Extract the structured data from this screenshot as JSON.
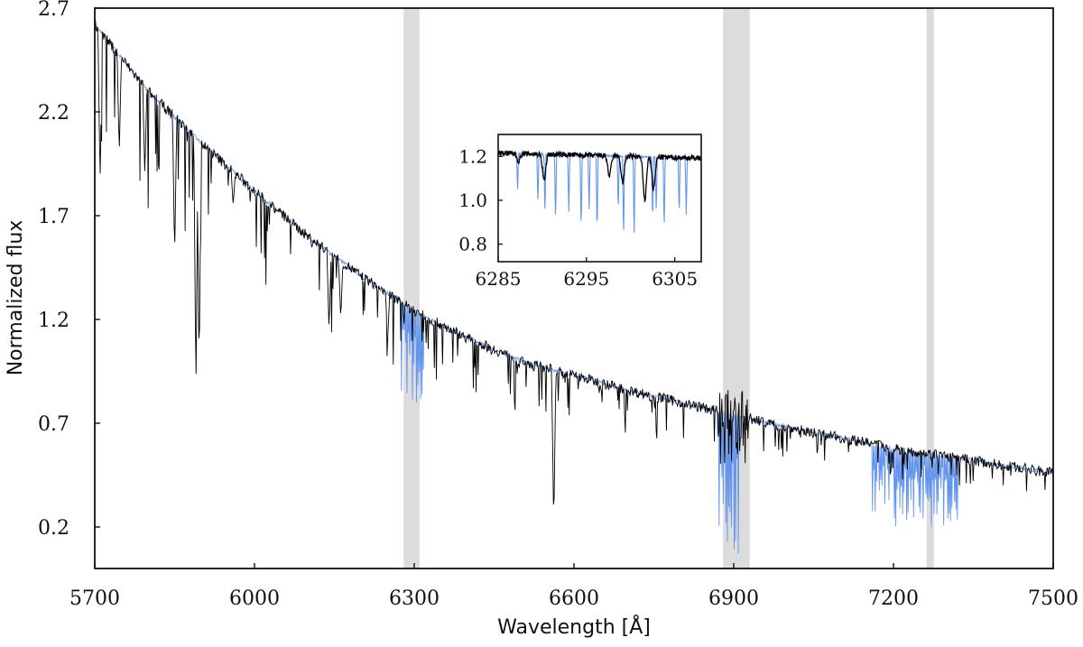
{
  "chart_data": [
    {
      "type": "line",
      "title": "",
      "xlabel": "Wavelength [Å]",
      "ylabel": "Normalized flux",
      "xlim": [
        5700,
        7500
      ],
      "ylim": [
        0,
        2.7
      ],
      "x_ticks": [
        5700,
        6000,
        6300,
        6600,
        6900,
        7200,
        7500
      ],
      "x_tick_labels": [
        "5700",
        "6000",
        "6300",
        "6600",
        "6900",
        "7200",
        "7500"
      ],
      "y_ticks": [
        0.2,
        0.7,
        1.2,
        1.7,
        2.2,
        2.7
      ],
      "y_tick_labels": [
        "0.2",
        "0.7",
        "1.2",
        "1.7",
        "2.2",
        "2.7"
      ],
      "grid": false,
      "shaded_regions": [
        [
          6280,
          6310
        ],
        [
          6880,
          6930
        ],
        [
          7262,
          7276
        ]
      ],
      "series": [
        {
          "color": "#6495ed",
          "continuum": [
            [
              5700,
              2.62
            ],
            [
              5800,
              2.3
            ],
            [
              5900,
              2.05
            ],
            [
              6000,
              1.82
            ],
            [
              6100,
              1.6
            ],
            [
              6200,
              1.41
            ],
            [
              6300,
              1.24
            ],
            [
              6400,
              1.11
            ],
            [
              6500,
              1.0
            ],
            [
              6600,
              0.93
            ],
            [
              6700,
              0.86
            ],
            [
              6800,
              0.8
            ],
            [
              6900,
              0.74
            ],
            [
              7000,
              0.68
            ],
            [
              7100,
              0.63
            ],
            [
              7200,
              0.58
            ],
            [
              7300,
              0.54
            ],
            [
              7400,
              0.5
            ],
            [
              7500,
              0.46
            ]
          ],
          "absorption_bands": [
            [
              6276,
              6318,
              0.7
            ],
            [
              6868,
              6912,
              0.05
            ],
            [
              7160,
              7320,
              0.2
            ]
          ]
        },
        {
          "color": "#000000",
          "continuum": [
            [
              5700,
              2.62
            ],
            [
              5800,
              2.3
            ],
            [
              5900,
              2.05
            ],
            [
              6000,
              1.82
            ],
            [
              6100,
              1.6
            ],
            [
              6200,
              1.41
            ],
            [
              6300,
              1.24
            ],
            [
              6400,
              1.11
            ],
            [
              6500,
              1.0
            ],
            [
              6600,
              0.93
            ],
            [
              6700,
              0.86
            ],
            [
              6800,
              0.8
            ],
            [
              6900,
              0.74
            ],
            [
              7000,
              0.68
            ],
            [
              7100,
              0.63
            ],
            [
              7200,
              0.58
            ],
            [
              7300,
              0.54
            ],
            [
              7400,
              0.5
            ],
            [
              7500,
              0.46
            ]
          ],
          "absorption_lines": [
            [
              5710,
              1.85
            ],
            [
              5746,
              2.0
            ],
            [
              5794,
              1.9
            ],
            [
              5850,
              1.5
            ],
            [
              5890,
              0.85
            ],
            [
              5896,
              0.95
            ],
            [
              5960,
              1.75
            ],
            [
              6140,
              1.15
            ],
            [
              6162,
              1.2
            ],
            [
              6250,
              1.1
            ],
            [
              6495,
              0.98
            ],
            [
              6562,
              0.2
            ]
          ],
          "noisy_region": [
            6870,
            6930,
            0.5,
            0.86
          ]
        }
      ]
    },
    {
      "type": "line",
      "title": "",
      "xlim": [
        6285,
        6308
      ],
      "ylim": [
        0.72,
        1.3
      ],
      "x_ticks": [
        6285,
        6295,
        6305
      ],
      "x_tick_labels": [
        "6285",
        "6295",
        "6305"
      ],
      "y_ticks": [
        0.8,
        1.0,
        1.2
      ],
      "y_tick_labels": [
        "0.8",
        "1.0",
        "1.2"
      ],
      "series": [
        {
          "color": "#6495ed",
          "telluric_lines": [
            [
              6287.2,
              1.04
            ],
            [
              6289.5,
              0.99
            ],
            [
              6290.3,
              0.94
            ],
            [
              6291.5,
              0.9
            ],
            [
              6293,
              0.94
            ],
            [
              6294.4,
              0.86
            ],
            [
              6295.3,
              0.95
            ],
            [
              6296.2,
              0.84
            ],
            [
              6298.6,
              0.95
            ],
            [
              6299.2,
              0.82
            ],
            [
              6300.4,
              0.82
            ],
            [
              6302.5,
              0.9
            ],
            [
              6302.9,
              0.95
            ],
            [
              6303.8,
              0.86
            ],
            [
              6305.5,
              0.93
            ],
            [
              6306.3,
              0.93
            ]
          ]
        },
        {
          "color": "#000000",
          "stellar_lines": [
            [
              6287.3,
              1.18
            ],
            [
              6290.2,
              1.09
            ],
            [
              6297.6,
              1.11
            ],
            [
              6299.1,
              1.08
            ],
            [
              6301.6,
              1.0
            ],
            [
              6302.6,
              1.05
            ]
          ]
        }
      ]
    }
  ]
}
